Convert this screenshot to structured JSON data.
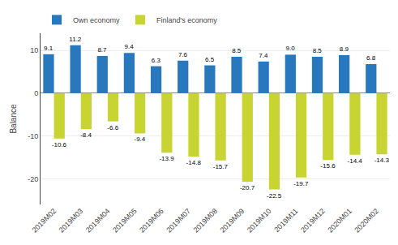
{
  "chart_data": {
    "type": "bar",
    "categories": [
      "2019M02",
      "2019M03",
      "2019M04",
      "2019M05",
      "2019M06",
      "2019M07",
      "2019M08",
      "2019M09",
      "2019M10",
      "2019M11",
      "2019M12",
      "2020M01",
      "2020M02"
    ],
    "series": [
      {
        "name": "Own economy",
        "color": "#2878BE",
        "values": [
          9.1,
          11.2,
          8.7,
          9.4,
          6.3,
          7.6,
          6.5,
          8.5,
          7.4,
          9.0,
          8.5,
          8.9,
          6.8
        ],
        "value_labels": [
          "9.1",
          "11.2",
          "8.7",
          "9.4",
          "6.3",
          "7.6",
          "6.5",
          "8.5",
          "7.4",
          "9.0",
          "8.5",
          "8.9",
          "6.8"
        ]
      },
      {
        "name": "Finland's economy",
        "color": "#C8D432",
        "values": [
          -10.6,
          -8.4,
          -6.6,
          -9.4,
          -13.9,
          -14.8,
          -15.7,
          -20.7,
          -22.5,
          -19.7,
          -15.6,
          -14.4,
          -14.3
        ],
        "value_labels": [
          "-10.6",
          "-8.4",
          "-6.6",
          "-9.4",
          "-13.9",
          "-14.8",
          "-15.7",
          "-20.7",
          "-22.5",
          "-19.7",
          "-15.6",
          "-14.4",
          "-14.3"
        ]
      }
    ],
    "ylabel": "Balance",
    "ylim": [
      -26,
      14
    ],
    "yticks": [
      -20,
      -10,
      0,
      10
    ],
    "grid": true,
    "legend": "upper left",
    "data_labels": true
  }
}
